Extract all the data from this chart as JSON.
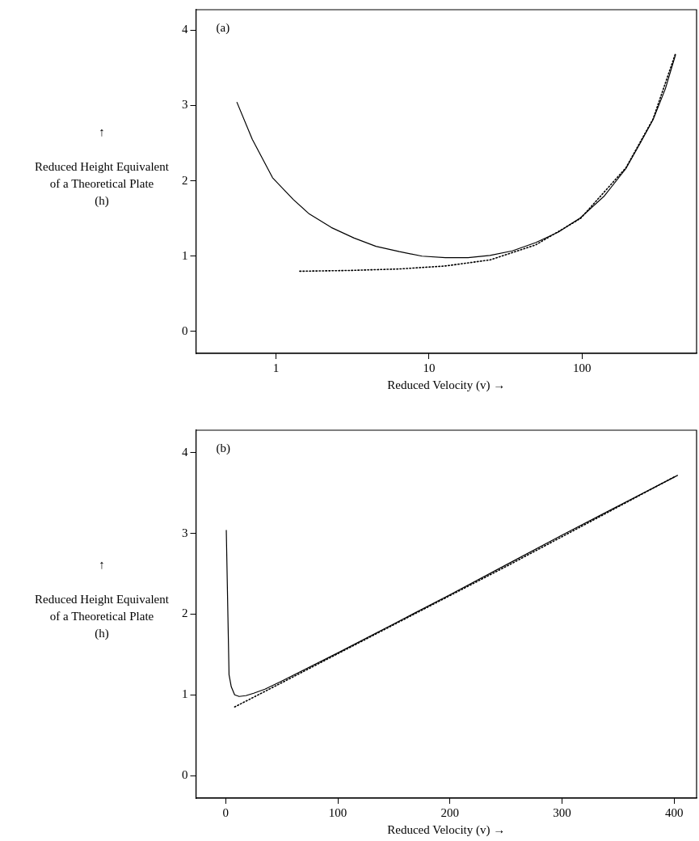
{
  "chart_data": [
    {
      "type": "line",
      "xlabel": "Reduced Velocity (v) →",
      "ylabel": "↑\nReduced Height Equivalent\nof a Theoretical Plate\n(h)",
      "annotations": [
        "(a)"
      ],
      "log": "x",
      "xlim": [
        0.3,
        560
      ],
      "xticks": [
        1,
        10,
        100
      ],
      "ylim": [
        -0.29,
        4.27
      ],
      "yticks": [
        0,
        1,
        2,
        3,
        4
      ],
      "grid": false,
      "legend": false,
      "marker": "none",
      "series": [
        {
          "color": "#000000",
          "line_style": "solid",
          "x": [
            0.556,
            0.7,
            0.95,
            1.3,
            1.65,
            2.3,
            3.24,
            4.5,
            6.4,
            9,
            12.8,
            18,
            25,
            35,
            49.8,
            70,
            97.7,
            140,
            193,
            240,
            291,
            350,
            408
          ],
          "values": [
            3.04,
            2.55,
            2.04,
            1.75,
            1.56,
            1.38,
            1.24,
            1.13,
            1.06,
            1.0,
            0.98,
            0.98,
            1.01,
            1.07,
            1.18,
            1.32,
            1.51,
            1.8,
            2.16,
            2.5,
            2.81,
            3.22,
            3.67
          ]
        },
        {
          "color": "#000000",
          "line_style": "dotted",
          "x": [
            1.43,
            3,
            6.4,
            12.8,
            25,
            49.8,
            97.7,
            193,
            291,
            408
          ],
          "values": [
            0.8,
            0.81,
            0.83,
            0.87,
            0.95,
            1.15,
            1.5,
            2.17,
            2.82,
            3.69
          ]
        }
      ]
    },
    {
      "type": "line",
      "xlabel": "Reduced Velocity (v) →",
      "ylabel": "↑\nReduced Height Equivalent\nof a Theoretical Plate\n(h)",
      "annotations": [
        "(b)"
      ],
      "xlim": [
        -26.5,
        420
      ],
      "xticks": [
        0,
        100,
        200,
        300,
        400
      ],
      "ylim": [
        -0.28,
        4.28
      ],
      "yticks": [
        0,
        1,
        2,
        3,
        4
      ],
      "grid": false,
      "legend": false,
      "marker": "none",
      "series": [
        {
          "color": "#000000",
          "line_style": "solid",
          "x": [
            0.55,
            3,
            5,
            8,
            12,
            18,
            25,
            35,
            50,
            100,
            150,
            200,
            250,
            300,
            350,
            403
          ],
          "values": [
            3.04,
            1.25,
            1.1,
            1.0,
            0.98,
            0.99,
            1.02,
            1.07,
            1.17,
            1.52,
            1.88,
            2.24,
            2.61,
            2.98,
            3.34,
            3.72
          ]
        },
        {
          "color": "#000000",
          "line_style": "dotted",
          "x": [
            8,
            50,
            100,
            150,
            200,
            250,
            300,
            350,
            400
          ],
          "values": [
            0.85,
            1.15,
            1.51,
            1.87,
            2.23,
            2.59,
            2.96,
            3.33,
            3.7
          ]
        }
      ]
    }
  ]
}
